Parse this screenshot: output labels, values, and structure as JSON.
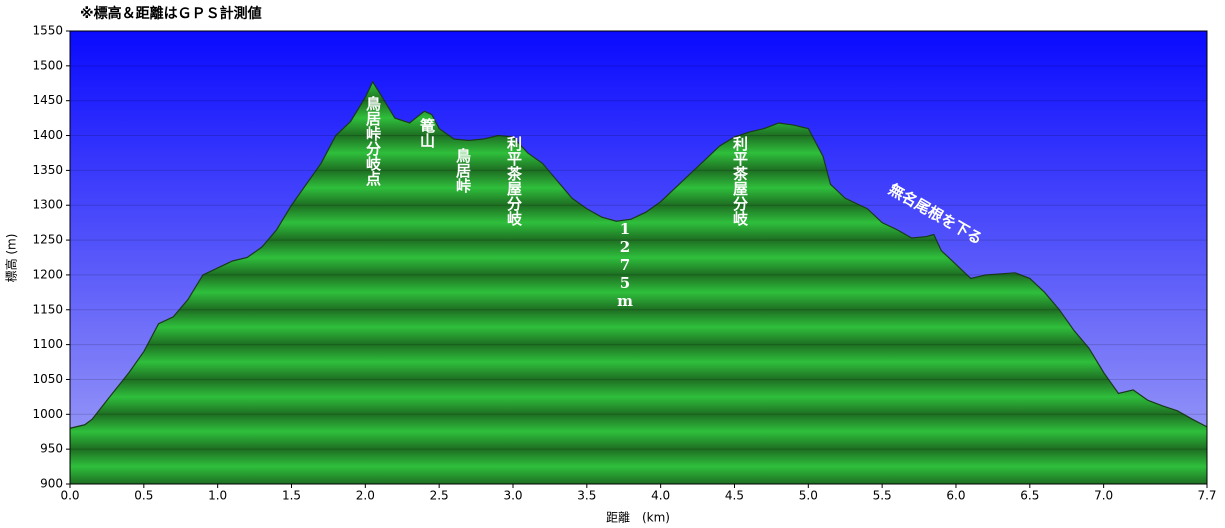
{
  "chart_data": {
    "type": "area",
    "title": "※標高＆距離はＧＰＳ計測値",
    "x_label": "距離　(km)",
    "y_label": "標高 (m)",
    "x": [
      0,
      0.1,
      0.15,
      0.25,
      0.4,
      0.5,
      0.6,
      0.7,
      0.8,
      0.9,
      1.0,
      1.1,
      1.2,
      1.3,
      1.4,
      1.5,
      1.6,
      1.7,
      1.8,
      1.9,
      2.0,
      2.05,
      2.1,
      2.2,
      2.3,
      2.4,
      2.45,
      2.5,
      2.6,
      2.7,
      2.8,
      2.9,
      3.0,
      3.1,
      3.2,
      3.3,
      3.4,
      3.5,
      3.6,
      3.7,
      3.8,
      3.9,
      4.0,
      4.1,
      4.2,
      4.3,
      4.4,
      4.5,
      4.6,
      4.7,
      4.8,
      4.9,
      5.0,
      5.1,
      5.15,
      5.25,
      5.4,
      5.5,
      5.6,
      5.7,
      5.8,
      5.85,
      5.9,
      6.0,
      6.1,
      6.2,
      6.4,
      6.5,
      6.6,
      6.7,
      6.8,
      6.9,
      7.0,
      7.1,
      7.2,
      7.3,
      7.4,
      7.5,
      7.6,
      7.7
    ],
    "series": [
      {
        "color": "#22aa33",
        "values": [
          980,
          985,
          993,
          1020,
          1060,
          1090,
          1130,
          1140,
          1165,
          1200,
          1210,
          1220,
          1225,
          1240,
          1265,
          1300,
          1330,
          1360,
          1400,
          1420,
          1455,
          1477,
          1460,
          1425,
          1418,
          1435,
          1430,
          1410,
          1395,
          1393,
          1395,
          1400,
          1398,
          1375,
          1360,
          1335,
          1310,
          1295,
          1283,
          1277,
          1280,
          1290,
          1305,
          1325,
          1345,
          1365,
          1385,
          1398,
          1405,
          1410,
          1418,
          1415,
          1410,
          1370,
          1330,
          1310,
          1295,
          1275,
          1265,
          1253,
          1255,
          1258,
          1235,
          1215,
          1195,
          1200,
          1203,
          1195,
          1175,
          1150,
          1120,
          1095,
          1060,
          1030,
          1035,
          1020,
          1012,
          1005,
          993,
          982
        ]
      }
    ],
    "xlim": [
      0,
      7.7
    ],
    "xticks": [
      {
        "value": 0,
        "label": "0.0"
      },
      0.5,
      {
        "value": 1,
        "label": "1.0"
      },
      1.5,
      {
        "value": 2,
        "label": "2.0"
      },
      2.5,
      {
        "value": 3,
        "label": "3.0"
      },
      3.5,
      {
        "value": 4,
        "label": "4.0"
      },
      4.5,
      {
        "value": 5,
        "label": "5.0"
      },
      5.5,
      {
        "value": 6,
        "label": "6.0"
      },
      6.5,
      {
        "value": 7,
        "label": "7.0"
      },
      7.7
    ],
    "ylim": [
      900,
      1550
    ],
    "yticks": [
      900,
      950,
      1000,
      1050,
      1100,
      1150,
      1200,
      1250,
      1300,
      1350,
      1400,
      1450,
      1500,
      1550
    ],
    "grid": true,
    "annotations": [
      "鳥居峠分岐点",
      "篭山",
      "鳥居峠",
      "利平茶屋分岐",
      "1275m",
      "利平茶屋分岐",
      "無名尾根を下る"
    ]
  }
}
